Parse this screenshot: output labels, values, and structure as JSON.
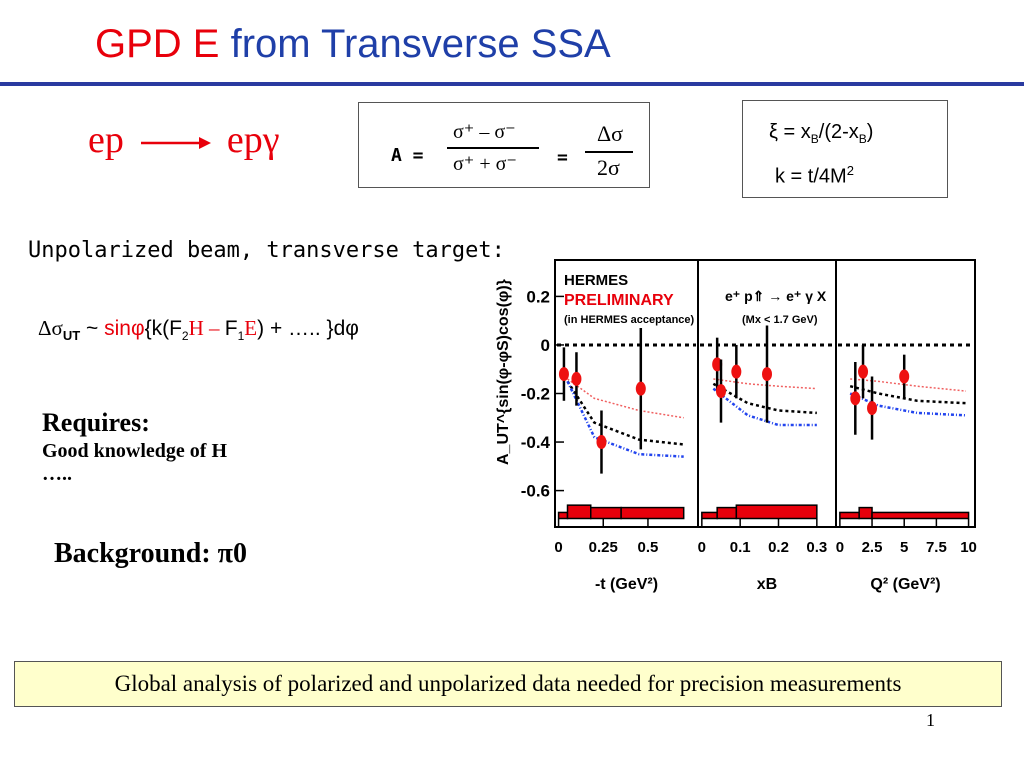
{
  "title": {
    "part1": "GPD E",
    "part2": "from Transverse SSA"
  },
  "reaction": {
    "initial": "ep",
    "final": "epγ"
  },
  "asymmetry": {
    "lhs": "A =",
    "num": "σ⁺ – σ⁻",
    "den": "σ⁺ + σ⁻",
    "eq": "=",
    "num2": "Δσ",
    "den2": "2σ"
  },
  "variables": {
    "xi_lhs": "ξ = x",
    "xi_sub1": "B",
    "xi_mid": "/(2-x",
    "xi_sub2": "B",
    "xi_end": ")",
    "k_lhs": "k = t/4M",
    "k_sup": "2"
  },
  "setup_text": "Unpolarized beam, transverse target:",
  "dsigma": {
    "delta": "Δσ",
    "sub": "UT",
    "tilde": " ~ ",
    "sin": "sinφ",
    "open": "{k(F",
    "f_sub2": "2",
    "H": "H",
    "minus": " – ",
    "F1": "F",
    "f_sub1": "1",
    "E": "E",
    "rest": ") + ….. }dφ"
  },
  "requires": {
    "heading": "Requires:",
    "line1": "Good knowledge of H",
    "line2": "….."
  },
  "background": {
    "label": "Background: ",
    "value": "π0"
  },
  "note": "Global analysis of polarized and unpolarized data needed for precision measurements",
  "page_number": "1",
  "colors": {
    "red": "#e8000b",
    "blue": "#1f3fa8",
    "rule": "#2a3aa0",
    "note_bg": "#ffffcc"
  },
  "chart_data": {
    "type": "scatter",
    "ylabel": "A_UT^{sin(φ-φS)cos(φ)}",
    "ylim": [
      -0.75,
      0.35
    ],
    "yticks": [
      0.2,
      0,
      -0.2,
      -0.4,
      -0.6
    ],
    "ytick_labels": [
      "0.2",
      "0",
      "-0.2",
      "-0.4",
      "-0.6"
    ],
    "label_hermes": "HERMES",
    "label_prelim": "PRELIMINARY",
    "label_accept": "(in HERMES acceptance)",
    "reaction_label": "e⁺ p⇑ → e⁺ γ X",
    "mass_cut": "(Mx < 1.7 GeV)",
    "panels": [
      {
        "xlabel": "-t (GeV²)",
        "xlim": [
          -0.02,
          0.78
        ],
        "xticks": [
          0,
          0.25,
          0.5
        ],
        "xtick_labels": [
          "0",
          "0.25",
          "0.5"
        ],
        "points": [
          {
            "x": 0.03,
            "y": -0.12,
            "err": 0.11
          },
          {
            "x": 0.1,
            "y": -0.14,
            "err": 0.11
          },
          {
            "x": 0.24,
            "y": -0.4,
            "err": 0.13
          },
          {
            "x": 0.46,
            "y": -0.18,
            "err": 0.25
          }
        ],
        "curves": {
          "red": [
            [
              0.05,
              -0.14
            ],
            [
              0.2,
              -0.22
            ],
            [
              0.45,
              -0.27
            ],
            [
              0.7,
              -0.3
            ]
          ],
          "black": [
            [
              0.05,
              -0.15
            ],
            [
              0.2,
              -0.32
            ],
            [
              0.45,
              -0.39
            ],
            [
              0.7,
              -0.41
            ]
          ],
          "blue": [
            [
              0.05,
              -0.15
            ],
            [
              0.2,
              -0.38
            ],
            [
              0.45,
              -0.45
            ],
            [
              0.7,
              -0.46
            ]
          ]
        },
        "hist": [
          [
            0,
            0.05,
            -0.69
          ],
          [
            0.05,
            0.18,
            -0.66
          ],
          [
            0.18,
            0.35,
            -0.67
          ],
          [
            0.35,
            0.7,
            -0.67
          ]
        ]
      },
      {
        "xlabel": "xB",
        "xlim": [
          -0.01,
          0.35
        ],
        "xticks": [
          0,
          0.1,
          0.2,
          0.3
        ],
        "xtick_labels": [
          "0",
          "0.1",
          "0.2",
          "0.3"
        ],
        "points": [
          {
            "x": 0.04,
            "y": -0.08,
            "err": 0.11
          },
          {
            "x": 0.05,
            "y": -0.19,
            "err": 0.13
          },
          {
            "x": 0.09,
            "y": -0.11,
            "err": 0.11
          },
          {
            "x": 0.17,
            "y": -0.12,
            "err": 0.2
          }
        ],
        "curves": {
          "red": [
            [
              0.03,
              -0.14
            ],
            [
              0.12,
              -0.16
            ],
            [
              0.2,
              -0.17
            ],
            [
              0.3,
              -0.18
            ]
          ],
          "black": [
            [
              0.03,
              -0.16
            ],
            [
              0.12,
              -0.24
            ],
            [
              0.2,
              -0.27
            ],
            [
              0.3,
              -0.28
            ]
          ],
          "blue": [
            [
              0.03,
              -0.18
            ],
            [
              0.12,
              -0.29
            ],
            [
              0.2,
              -0.33
            ],
            [
              0.3,
              -0.33
            ]
          ]
        },
        "hist": [
          [
            0,
            0.04,
            -0.69
          ],
          [
            0.04,
            0.09,
            -0.67
          ],
          [
            0.09,
            0.3,
            -0.66
          ]
        ]
      },
      {
        "xlabel": "Q² (GeV²)",
        "xlim": [
          -0.3,
          10.5
        ],
        "xticks": [
          0,
          2.5,
          5,
          7.5,
          10
        ],
        "xtick_labels": [
          "0",
          "2.5",
          "5",
          "7.5",
          "10"
        ],
        "points": [
          {
            "x": 1.2,
            "y": -0.22,
            "err": 0.15
          },
          {
            "x": 1.8,
            "y": -0.11,
            "err": 0.11
          },
          {
            "x": 2.5,
            "y": -0.26,
            "err": 0.13
          },
          {
            "x": 5.0,
            "y": -0.13,
            "err": 0.09
          }
        ],
        "curves": {
          "red": [
            [
              0.8,
              -0.14
            ],
            [
              3,
              -0.15
            ],
            [
              6,
              -0.17
            ],
            [
              9.8,
              -0.19
            ]
          ],
          "black": [
            [
              0.8,
              -0.17
            ],
            [
              3,
              -0.2
            ],
            [
              6,
              -0.23
            ],
            [
              9.8,
              -0.24
            ]
          ],
          "blue": [
            [
              0.8,
              -0.2
            ],
            [
              3,
              -0.25
            ],
            [
              6,
              -0.28
            ],
            [
              9.8,
              -0.29
            ]
          ]
        },
        "hist": [
          [
            0,
            1.5,
            -0.69
          ],
          [
            1.5,
            2.5,
            -0.67
          ],
          [
            2.5,
            10,
            -0.69
          ]
        ]
      }
    ]
  }
}
